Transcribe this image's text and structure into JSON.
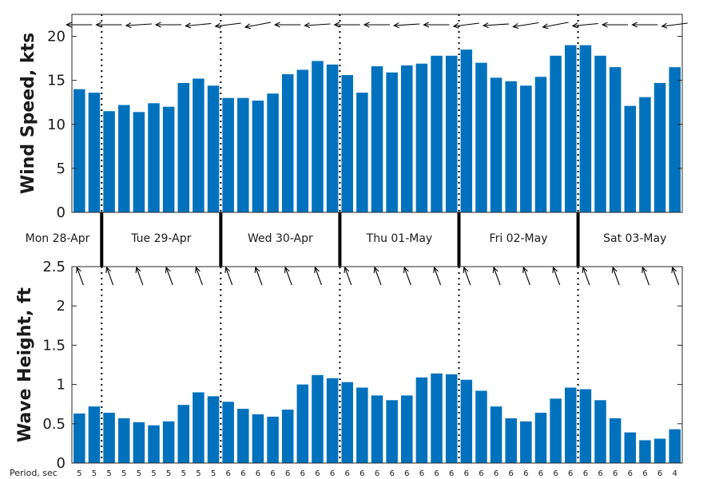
{
  "chart_data": [
    {
      "type": "bar",
      "panel": "wind",
      "ylabel": "Wind Speed, kts",
      "ylim": [
        0,
        22.5
      ],
      "yticks": [
        0,
        5,
        10,
        15,
        20
      ],
      "color": "#0072bd",
      "values": [
        14.0,
        13.6,
        11.5,
        12.2,
        11.4,
        12.4,
        12.0,
        14.7,
        15.2,
        14.4,
        13.0,
        13.0,
        12.7,
        13.5,
        15.7,
        16.2,
        17.2,
        16.8,
        15.6,
        13.6,
        16.6,
        15.9,
        16.7,
        16.9,
        17.8,
        17.8,
        18.5,
        17.0,
        15.3,
        14.9,
        14.4,
        15.4,
        17.8,
        19.0,
        19.0,
        17.8,
        16.5,
        12.1,
        13.1,
        14.7,
        16.5
      ],
      "direction_arrows": "wind direction arrows drawn above bars, pointing mostly toward the west (left)"
    },
    {
      "type": "bar",
      "panel": "waves",
      "ylabel": "Wave Height, ft",
      "ylim": [
        0,
        2.5
      ],
      "yticks": [
        0,
        0.5,
        1,
        1.5,
        2,
        2.5
      ],
      "ytick_labels": [
        "0",
        "0.5",
        "1",
        "1.5",
        "2",
        "2.5"
      ],
      "color": "#0072bd",
      "values": [
        0.63,
        0.72,
        0.64,
        0.57,
        0.52,
        0.48,
        0.53,
        0.74,
        0.9,
        0.85,
        0.78,
        0.69,
        0.62,
        0.59,
        0.68,
        1.0,
        1.12,
        1.08,
        1.03,
        0.96,
        0.86,
        0.8,
        0.86,
        1.09,
        1.14,
        1.13,
        1.06,
        0.92,
        0.72,
        0.57,
        0.53,
        0.64,
        0.82,
        0.96,
        0.94,
        0.8,
        0.57,
        0.39,
        0.29,
        0.31,
        0.43
      ],
      "direction_arrows": "swell direction arrows drawn above bars, pointing up and to the left"
    }
  ],
  "days": [
    "Mon 28-Apr",
    "Tue 29-Apr",
    "Wed 30-Apr",
    "Thu 01-May",
    "Fri 02-May",
    "Sat 03-May"
  ],
  "day_boundaries_bar_index": [
    1.5,
    9.5,
    17.5,
    25.5,
    33.5
  ],
  "period": {
    "title": "Period, sec",
    "values": [
      "5",
      "5",
      "5",
      "5",
      "5",
      "5",
      "5",
      "5",
      "5",
      "5",
      "6",
      "6",
      "6",
      "6",
      "6",
      "6",
      "6",
      "6",
      "6",
      "6",
      "6",
      "6",
      "6",
      "6",
      "6",
      "6",
      "6",
      "6",
      "6",
      "6",
      "6",
      "6",
      "6",
      "6",
      "6",
      "6",
      "6",
      "6",
      "6",
      "6",
      "4"
    ]
  }
}
